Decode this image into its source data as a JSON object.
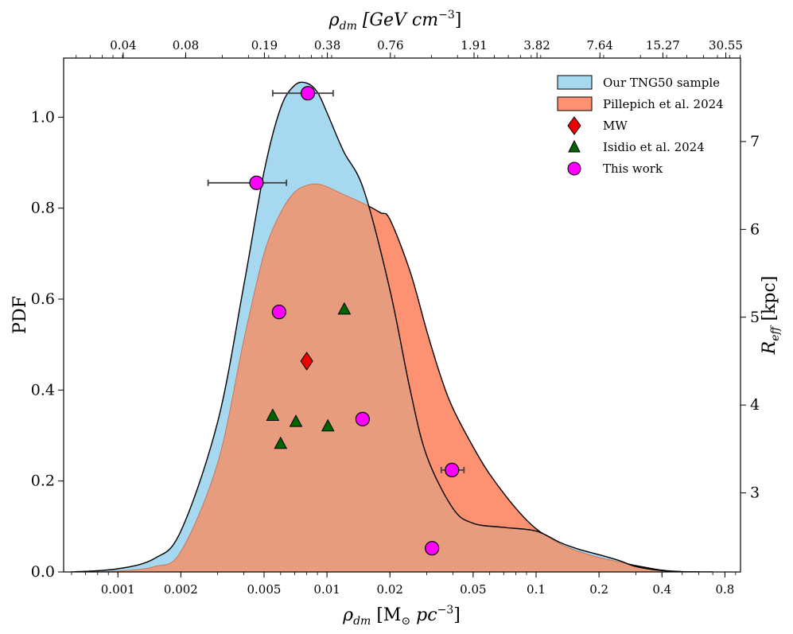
{
  "chart_data": {
    "type": "area",
    "xscale": "log",
    "xlim": [
      0.00055,
      0.95
    ],
    "ylim_left": [
      0,
      1.13
    ],
    "ylim_right": [
      2.1,
      7.95
    ],
    "axes": {
      "bottom_ticks": [
        {
          "value": 0.001,
          "label": "0.001"
        },
        {
          "value": 0.002,
          "label": "0.002"
        },
        {
          "value": 0.005,
          "label": "0.005"
        },
        {
          "value": 0.01,
          "label": "0.01"
        },
        {
          "value": 0.02,
          "label": "0.02"
        },
        {
          "value": 0.05,
          "label": "0.05"
        },
        {
          "value": 0.1,
          "label": "0.1"
        },
        {
          "value": 0.2,
          "label": "0.2"
        },
        {
          "value": 0.4,
          "label": "0.4"
        },
        {
          "value": 0.8,
          "label": "0.8"
        }
      ],
      "top_ticks": [
        {
          "value": 0.00106,
          "label": "0.04"
        },
        {
          "value": 0.00211,
          "label": "0.08"
        },
        {
          "value": 0.00502,
          "label": "0.19"
        },
        {
          "value": 0.01004,
          "label": "0.38"
        },
        {
          "value": 0.0201,
          "label": "0.76"
        },
        {
          "value": 0.0505,
          "label": "1.91"
        },
        {
          "value": 0.101,
          "label": "3.82"
        },
        {
          "value": 0.202,
          "label": "7.64"
        },
        {
          "value": 0.404,
          "label": "15.27"
        },
        {
          "value": 0.808,
          "label": "30.55"
        }
      ],
      "left_ticks": [
        {
          "value": 0.0,
          "label": "0.0"
        },
        {
          "value": 0.2,
          "label": "0.2"
        },
        {
          "value": 0.4,
          "label": "0.4"
        },
        {
          "value": 0.6,
          "label": "0.6"
        },
        {
          "value": 0.8,
          "label": "0.8"
        },
        {
          "value": 1.0,
          "label": "1.0"
        }
      ],
      "right_ticks": [
        {
          "value": 3,
          "label": "3"
        },
        {
          "value": 4,
          "label": "4"
        },
        {
          "value": 5,
          "label": "5"
        },
        {
          "value": 6,
          "label": "6"
        },
        {
          "value": 7,
          "label": "7"
        }
      ],
      "xlabel": "ρdm [M⊙ pc−3]",
      "xlabel_parts": {
        "symbol": "ρ",
        "sub": "dm",
        "rest": " [M",
        "sun": "⊙",
        "rest2": " pc",
        "exp": "−3",
        "close": "]"
      },
      "top_xlabel": "ρdm [GeV cm−3]",
      "top_xlabel_parts": {
        "symbol": "ρ",
        "sub": "dm",
        "rest": " [GeV cm",
        "exp": "−3",
        "close": "]"
      },
      "ylabel_left": "PDF",
      "ylabel_right": "Reff [kpc]",
      "ylabel_right_parts": {
        "symbol": "R",
        "sub": "eff",
        "rest": " [kpc]"
      }
    },
    "series": [
      {
        "name": "Our TNG50 sample",
        "kind": "density",
        "color": "#a6d8ef",
        "x": [
          0.0006,
          0.001,
          0.0015,
          0.002,
          0.003,
          0.004,
          0.005,
          0.006,
          0.007,
          0.008,
          0.009,
          0.01,
          0.012,
          0.015,
          0.02,
          0.025,
          0.03,
          0.04,
          0.05,
          0.07,
          0.1,
          0.13,
          0.16,
          0.2,
          0.25,
          0.3,
          0.4,
          0.5,
          0.6
        ],
        "y": [
          0.0,
          0.007,
          0.03,
          0.09,
          0.33,
          0.63,
          0.88,
          1.02,
          1.07,
          1.075,
          1.055,
          1.01,
          0.925,
          0.84,
          0.62,
          0.4,
          0.255,
          0.14,
          0.107,
          0.098,
          0.09,
          0.065,
          0.05,
          0.038,
          0.025,
          0.012,
          0.003,
          0.0005,
          0.0
        ]
      },
      {
        "name": "Pillepich et al. 2024",
        "kind": "density",
        "color": "#fc9272",
        "x": [
          0.0007,
          0.001,
          0.0015,
          0.002,
          0.003,
          0.004,
          0.005,
          0.006,
          0.007,
          0.008,
          0.009,
          0.01,
          0.012,
          0.015,
          0.018,
          0.02,
          0.025,
          0.03,
          0.035,
          0.04,
          0.05,
          0.06,
          0.08,
          0.1,
          0.13,
          0.16,
          0.2,
          0.25,
          0.3,
          0.4,
          0.5,
          0.7
        ],
        "y": [
          0.0,
          0.002,
          0.012,
          0.045,
          0.24,
          0.51,
          0.7,
          0.79,
          0.835,
          0.85,
          0.853,
          0.847,
          0.83,
          0.81,
          0.79,
          0.775,
          0.66,
          0.53,
          0.43,
          0.36,
          0.275,
          0.215,
          0.14,
          0.095,
          0.062,
          0.045,
          0.032,
          0.022,
          0.014,
          0.004,
          0.0008,
          0.0
        ]
      }
    ],
    "points": [
      {
        "name": "MW",
        "marker": "diamond",
        "color": "#ee0000",
        "data": [
          {
            "x": 0.008,
            "y": 4.5
          }
        ]
      },
      {
        "name": "Isidio et al. 2024",
        "marker": "triangle",
        "color": "#006400",
        "data": [
          {
            "x": 0.0121,
            "y": 5.09
          },
          {
            "x": 0.0055,
            "y": 3.88
          },
          {
            "x": 0.0071,
            "y": 3.81
          },
          {
            "x": 0.0101,
            "y": 3.76
          },
          {
            "x": 0.006,
            "y": 3.56
          }
        ]
      },
      {
        "name": "This work",
        "marker": "circle",
        "color": "#ff00ff",
        "data": [
          {
            "x": 0.0081,
            "y": 7.55,
            "xerr": [
              0.0055,
              0.0107
            ]
          },
          {
            "x": 0.0046,
            "y": 6.53,
            "xerr": [
              0.0027,
              0.0064
            ]
          },
          {
            "x": 0.0059,
            "y": 5.06
          },
          {
            "x": 0.0148,
            "y": 3.84,
            "xerr": [
              0.0139,
              0.0157
            ]
          },
          {
            "x": 0.0396,
            "y": 3.26,
            "xerr": [
              0.0352,
              0.0452
            ]
          },
          {
            "x": 0.0318,
            "y": 2.37
          }
        ]
      }
    ],
    "legend": {
      "position": "upper right",
      "entries": [
        "Our TNG50 sample",
        "Pillepich et al. 2024",
        "MW",
        "Isidio et al. 2024",
        "This work"
      ]
    },
    "colors": {
      "tng50": "#a6d8ef",
      "pillepich": "#fc9272",
      "overlap": "#e79c7e",
      "mw": "#ee0000",
      "isidio": "#006400",
      "this_work": "#ff00ff",
      "errorbar": "#444444"
    }
  }
}
